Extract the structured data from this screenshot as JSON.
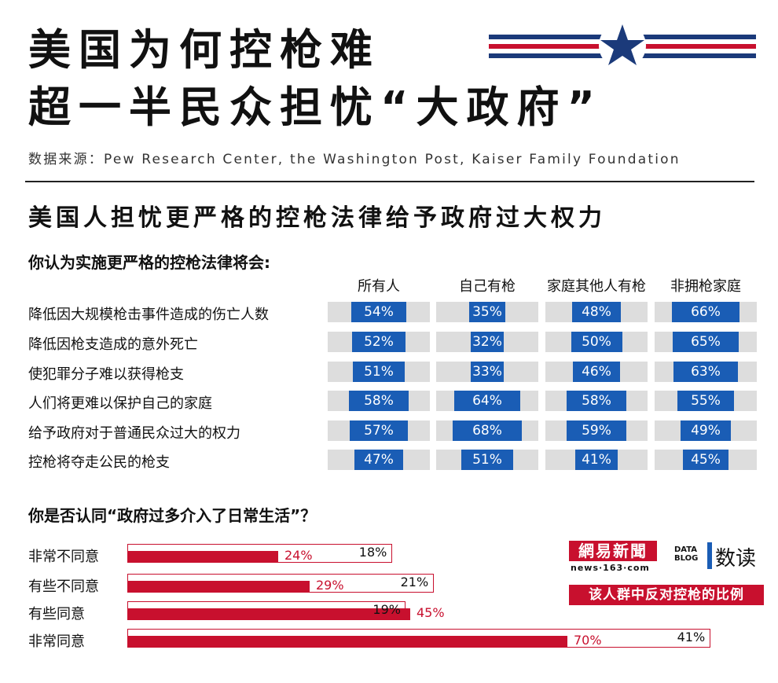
{
  "header": {
    "title_line1": "美国为何控枪难",
    "title_line2": "超一半民众担忧“大政府”",
    "source": "数据来源：Pew Research Center, the Washington Post, Kaiser Family Foundation"
  },
  "subtitle": "美国人担忧更严格的控枪法律给予政府过大权力",
  "section1": {
    "question": "你认为实施更严格的控枪法律将会:"
  },
  "section2": {
    "question": "你是否认同“政府过多介入了日常生活”？"
  },
  "brand": {
    "netease_text": "網易新聞",
    "netease_sub": "news·163·com",
    "datablog_line1": "DATA",
    "datablog_line2": "BLOG",
    "datablog_label": "数读",
    "legend_label": "该人群中反对控枪的比例"
  },
  "colors": {
    "blue": "#1a5db5",
    "red": "#c8102e",
    "gray_bg": "#dddddd",
    "navy": "#1b3a7a"
  },
  "chart_data": [
    {
      "type": "table",
      "title": "你认为实施更严格的控枪法律将会:",
      "columns": [
        "所有人",
        "自己有枪",
        "家庭其他人有枪",
        "非拥枪家庭"
      ],
      "rows": [
        {
          "label": "降低因大规模枪击事件造成的伤亡人数",
          "values": [
            54,
            35,
            48,
            66
          ],
          "display": [
            "54%",
            "35%",
            "48%",
            "66%"
          ]
        },
        {
          "label": "降低因枪支造成的意外死亡",
          "values": [
            52,
            32,
            50,
            65
          ],
          "display": [
            "52%",
            "32%",
            "50%",
            "65%"
          ]
        },
        {
          "label": "使犯罪分子难以获得枪支",
          "values": [
            51,
            33,
            46,
            63
          ],
          "display": [
            "51%",
            "33%",
            "46%",
            "63%"
          ]
        },
        {
          "label": "人们将更难以保护自己的家庭",
          "values": [
            58,
            64,
            58,
            55
          ],
          "display": [
            "58%",
            "64%",
            "58%",
            "55%"
          ]
        },
        {
          "label": "给予政府对于普通民众过大的权力",
          "values": [
            57,
            68,
            59,
            49
          ],
          "display": [
            "57%",
            "68%",
            "59%",
            "49%"
          ]
        },
        {
          "label": "控枪将夺走公民的枪支",
          "values": [
            47,
            51,
            41,
            45
          ],
          "display": [
            "47%",
            "51%",
            "41%",
            "45%"
          ]
        }
      ]
    },
    {
      "type": "bar",
      "title": "你是否认同“政府过多介入了日常生活”？",
      "categories": [
        "非常不同意",
        "有些不同意",
        "有些同意",
        "非常同意"
      ],
      "series": [
        {
          "values": [
            24,
            29,
            45,
            70
          ],
          "display": [
            "24%",
            "29%",
            "45%",
            "70%"
          ]
        },
        {
          "name": "该人群中反对控枪的比例",
          "values": [
            18,
            21,
            19,
            41
          ],
          "display": [
            "18%",
            "21%",
            "19%",
            "41%"
          ]
        }
      ]
    }
  ]
}
